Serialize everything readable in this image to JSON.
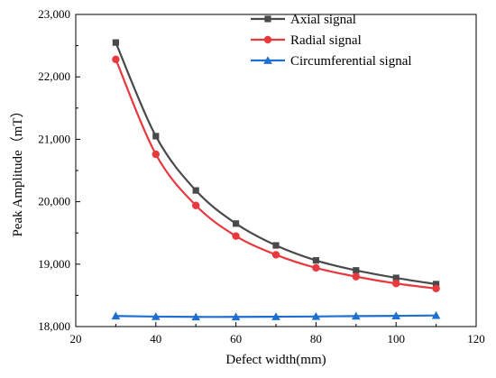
{
  "chart_data": {
    "type": "line",
    "title": "",
    "xlabel": "Defect width(mm)",
    "ylabel": "Peak Amplitude（mT）",
    "xlim": [
      20,
      120
    ],
    "ylim": [
      18000,
      23000
    ],
    "x_ticks": [
      20,
      40,
      60,
      80,
      100,
      120
    ],
    "x_tick_labels": [
      "20",
      "40",
      "60",
      "80",
      "100",
      "120"
    ],
    "y_ticks": [
      18000,
      19000,
      20000,
      21000,
      22000,
      23000
    ],
    "y_tick_labels": [
      "18,000",
      "19,000",
      "20,000",
      "21,000",
      "22,000",
      "23,000"
    ],
    "grid": false,
    "legend_position": "top-right",
    "x": [
      30,
      40,
      50,
      60,
      70,
      80,
      90,
      100,
      110
    ],
    "series": [
      {
        "name": "Axial signal",
        "color": "#4a4a4a",
        "marker": "square",
        "values": [
          22550,
          21050,
          20180,
          19650,
          19300,
          19060,
          18900,
          18780,
          18680
        ]
      },
      {
        "name": "Radial signal",
        "color": "#e8393f",
        "marker": "circle",
        "values": [
          22280,
          20760,
          19940,
          19450,
          19150,
          18940,
          18800,
          18690,
          18610
        ]
      },
      {
        "name": "Circumferential signal",
        "color": "#1f6fd1",
        "marker": "triangle",
        "values": [
          18170,
          18160,
          18155,
          18155,
          18158,
          18162,
          18168,
          18172,
          18178
        ]
      }
    ]
  }
}
